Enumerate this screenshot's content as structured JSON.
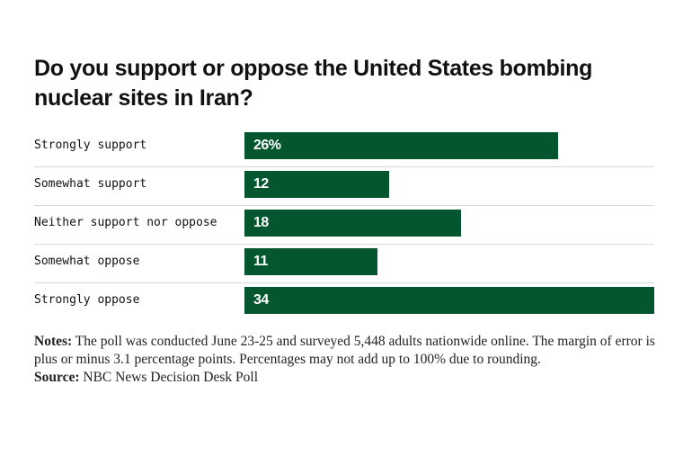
{
  "title": "Do you support or oppose the United States bombing nuclear sites in Iran?",
  "chart_data": {
    "type": "bar",
    "orientation": "horizontal",
    "categories": [
      "Strongly support",
      "Somewhat support",
      "Neither support nor oppose",
      "Somewhat oppose",
      "Strongly oppose"
    ],
    "values": [
      26,
      12,
      18,
      11,
      34
    ],
    "value_labels": [
      "26%",
      "12",
      "18",
      "11",
      "34"
    ],
    "xlim": [
      0,
      34
    ],
    "grid": false,
    "bar_color": "#04562f"
  },
  "notes": {
    "label": "Notes:",
    "text": "The poll was conducted June 23-25 and surveyed 5,448 adults nationwide online. The margin of error is plus or minus 3.1 percentage points. Percentages may not add up to 100% due to rounding."
  },
  "source": {
    "label": "Source:",
    "text": "NBC News Decision Desk Poll"
  }
}
